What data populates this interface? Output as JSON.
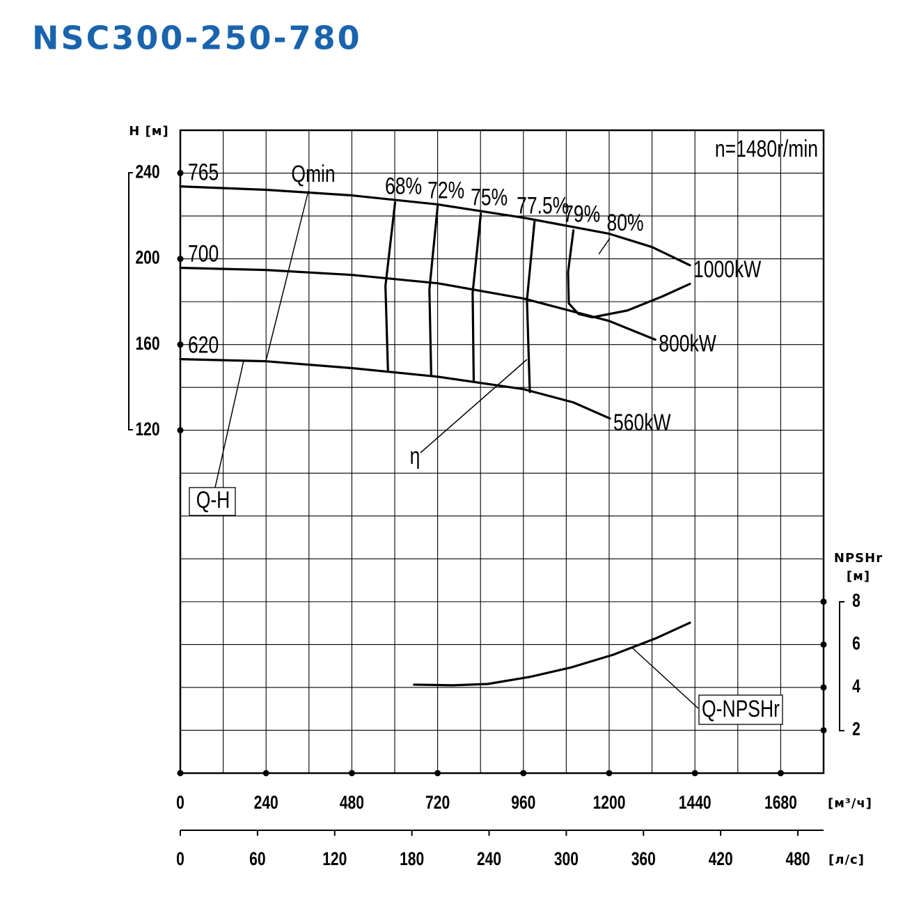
{
  "chart_data": {
    "type": "line",
    "title": "NSC300-250-780",
    "subtitle": "n=1480r/min",
    "ylabel": "H [м]",
    "y2label": [
      "NPSHr",
      "[м]"
    ],
    "xlabel": "[м³/ч]",
    "x2label": "[л/с]",
    "xlim": [
      0,
      1800
    ],
    "xticks": [
      0,
      240,
      480,
      720,
      960,
      1200,
      1440,
      1680
    ],
    "x2lim": [
      0,
      500
    ],
    "x2ticks": [
      0,
      60,
      120,
      180,
      240,
      300,
      360,
      420,
      480
    ],
    "ylim": [
      -40,
      260
    ],
    "yticks": [
      120,
      160,
      200,
      240
    ],
    "y2lim": [
      0,
      30
    ],
    "y2ticks": [
      2,
      4,
      6,
      8
    ],
    "grid": true,
    "xgrid": [
      0,
      120,
      240,
      360,
      480,
      600,
      720,
      840,
      960,
      1080,
      1200,
      1320,
      1440,
      1560,
      1680,
      1800
    ],
    "ygrid": [
      -40,
      -20,
      0,
      20,
      40,
      60,
      80,
      100,
      120,
      140,
      160,
      180,
      200,
      220,
      240,
      260
    ],
    "series": [
      {
        "name": "765",
        "role": "impeller",
        "end_label": "1000kW",
        "color": "#000000",
        "x": [
          0,
          240,
          480,
          720,
          960,
          1200,
          1320,
          1426
        ],
        "values": [
          233.8,
          232.2,
          229.6,
          225.4,
          219.2,
          211.7,
          205.5,
          197
        ]
      },
      {
        "name": "700",
        "role": "impeller",
        "end_label": "800kW",
        "color": "#000000",
        "x": [
          0,
          240,
          480,
          720,
          960,
          1200,
          1329
        ],
        "values": [
          195.8,
          194.8,
          192.5,
          188.6,
          181.5,
          171,
          162.3
        ]
      },
      {
        "name": "620",
        "role": "impeller",
        "end_label": "560kW",
        "color": "#000000",
        "x": [
          0,
          240,
          480,
          720,
          960,
          1100,
          1202
        ],
        "values": [
          153.2,
          152.2,
          149,
          145,
          139.2,
          133,
          125.5
        ]
      },
      {
        "name": "68%",
        "role": "efficiency",
        "color": "#000000",
        "x": [
          601,
          574,
          581
        ],
        "values": [
          226.3,
          187.3,
          148.3
        ]
      },
      {
        "name": "72%",
        "role": "efficiency",
        "color": "#000000",
        "x": [
          720,
          697,
          702
        ],
        "values": [
          224.4,
          185.7,
          145.7
        ]
      },
      {
        "name": "75%",
        "role": "efficiency",
        "color": "#000000",
        "x": [
          841,
          818,
          821
        ],
        "values": [
          221.1,
          184.1,
          143.1
        ]
      },
      {
        "name": "77.5%",
        "role": "efficiency",
        "color": "#000000",
        "x": [
          991,
          970,
          978
        ],
        "values": [
          217.2,
          180.8,
          137.9
        ]
      },
      {
        "name": "79%",
        "role": "efficiency",
        "color": "#000000",
        "x": [
          1100,
          1085,
          1087,
          1114,
          1153,
          1251,
          1348,
          1426
        ],
        "values": [
          213.3,
          193.8,
          179.2,
          174.3,
          172.7,
          175.9,
          182.4,
          188.3
        ]
      },
      {
        "name": "Q-NPSHr",
        "role": "npsh",
        "axis": "y2",
        "color": "#000000",
        "x": [
          654,
          763,
          860,
          978,
          1095,
          1212,
          1329,
          1426
        ],
        "values": [
          4.13,
          4.1,
          4.16,
          4.49,
          4.94,
          5.53,
          6.28,
          7.02
        ]
      }
    ],
    "annotations": [
      "Qmin",
      "η",
      "80%",
      "Q-H"
    ]
  }
}
